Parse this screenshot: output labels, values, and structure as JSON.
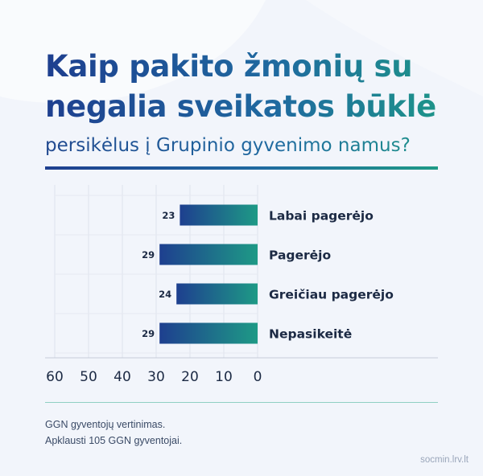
{
  "title_lines": [
    "Kaip pakito žmonių su",
    "negalia sveikatos būklė"
  ],
  "subtitle": "persikėlus į Grupinio gyvenimo namus?",
  "colors": {
    "gradient_start": "#1e3f8f",
    "gradient_end": "#1e9a86",
    "title_blue": "#1f4a93",
    "grid": "#d9dee8",
    "label_dark": "#1c2a44"
  },
  "chart_data": {
    "type": "bar",
    "orientation": "horizontal",
    "x_direction": "reversed",
    "categories": [
      "Labai pagerėjo",
      "Pagerėjo",
      "Greičiau pagerėjo",
      "Nepasikeitė"
    ],
    "values": [
      23,
      29,
      24,
      29
    ],
    "x_ticks": [
      60,
      50,
      40,
      30,
      20,
      10,
      0
    ],
    "xlim": [
      0,
      60
    ],
    "grid": true
  },
  "notes": [
    "GGN gyventojų vertinimas.",
    "Apklausti 105 GGN gyventojai."
  ],
  "source": "socmin.lrv.lt"
}
